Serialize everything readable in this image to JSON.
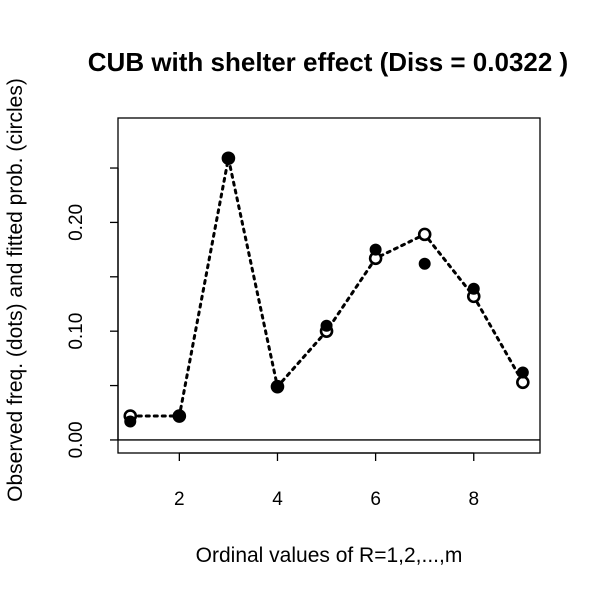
{
  "chart_data": {
    "type": "scatter",
    "title": "CUB with shelter effect  (Diss = 0.0322 )",
    "xlabel": "Ordinal values of R=1,2,...,m",
    "ylabel": "Observed  freq. (dots) and fitted prob. (circles)",
    "xlim": [
      0.75,
      9.35
    ],
    "ylim": [
      -0.012,
      0.296
    ],
    "x_ticks": [
      "2",
      "4",
      "6",
      "8"
    ],
    "y_ticks": [
      "0.00",
      "0.10",
      "0.20"
    ],
    "reference_line_y": 0,
    "grid": false,
    "legend": "none",
    "series": [
      {
        "name": "Observed  freq. (dots)",
        "marker": "filled-circle",
        "x": [
          1,
          2,
          3,
          4,
          5,
          6,
          7,
          8,
          9
        ],
        "values": [
          0.017,
          0.022,
          0.259,
          0.049,
          0.105,
          0.175,
          0.162,
          0.139,
          0.062
        ]
      },
      {
        "name": "fitted prob. (circles)",
        "marker": "open-circle",
        "line": "dotted",
        "x": [
          1,
          2,
          3,
          4,
          5,
          6,
          7,
          8,
          9
        ],
        "values": [
          0.022,
          0.022,
          0.259,
          0.049,
          0.1,
          0.167,
          0.189,
          0.132,
          0.053
        ]
      }
    ]
  }
}
